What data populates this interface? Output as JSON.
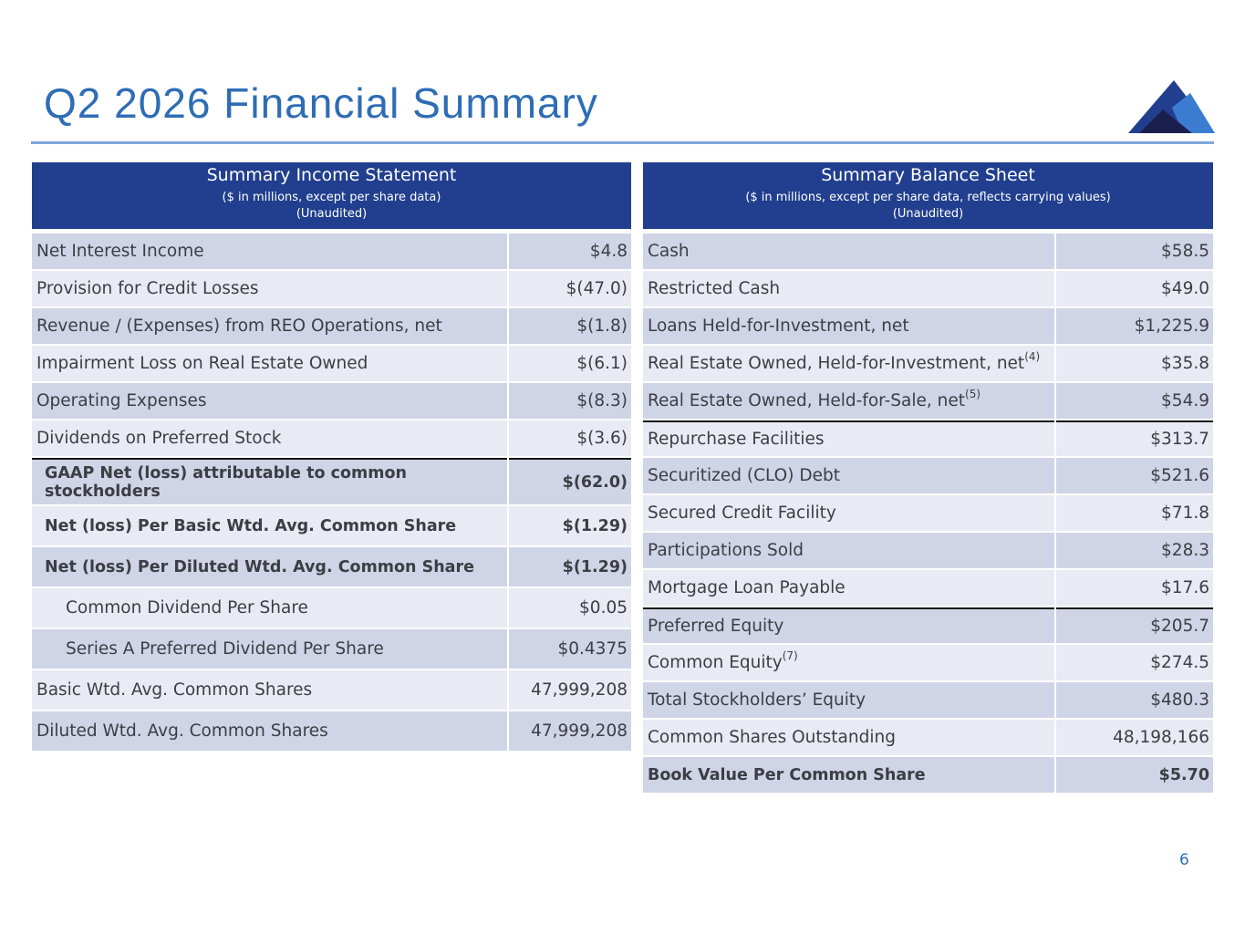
{
  "title": "Q2 2026 Financial Summary",
  "page_number": "6",
  "income_statement": {
    "title": "Summary Income Statement",
    "subtitle": "($ in millions, except per share data)",
    "note": "(Unaudited)",
    "rows": [
      {
        "label": "Net Interest Income",
        "value": "$4.8"
      },
      {
        "label": "Provision for Credit Losses",
        "value": "$(47.0)"
      },
      {
        "label": "Revenue / (Expenses) from REO Operations, net",
        "value": "$(1.8)"
      },
      {
        "label": "Impairment Loss on Real Estate Owned",
        "value": "$(6.1)"
      },
      {
        "label": "Operating Expenses",
        "value": "$(8.3)"
      },
      {
        "label": "Dividends on Preferred Stock",
        "value": "$(3.6)"
      },
      {
        "label": "GAAP Net (loss) attributable to common stockholders",
        "value": "$(62.0)"
      },
      {
        "label": "Net (loss) Per Basic Wtd. Avg. Common Share",
        "value": "$(1.29)"
      },
      {
        "label": "Net (loss) Per Diluted Wtd. Avg. Common Share",
        "value": "$(1.29)"
      },
      {
        "label": "Common Dividend Per Share",
        "value": "$0.05"
      },
      {
        "label": "Series A Preferred Dividend Per Share",
        "value": "$0.4375"
      },
      {
        "label": "Basic Wtd. Avg. Common Shares",
        "value": "47,999,208"
      },
      {
        "label": "Diluted Wtd. Avg. Common Shares",
        "value": "47,999,208"
      }
    ]
  },
  "balance_sheet": {
    "title": "Summary Balance Sheet",
    "subtitle": "($ in millions, except per share data, reflects carrying values)",
    "note": "(Unaudited)",
    "rows": [
      {
        "label": "Cash",
        "value": "$58.5"
      },
      {
        "label": "Restricted Cash",
        "value": "$49.0"
      },
      {
        "label": "Loans Held-for-Investment, net",
        "value": "$1,225.9"
      },
      {
        "label": "Real Estate Owned, Held-for-Investment, net",
        "footnote": "(4)",
        "value": "$35.8"
      },
      {
        "label": "Real Estate Owned, Held-for-Sale, net",
        "footnote": "(5)",
        "value": "$54.9"
      },
      {
        "label": "Repurchase Facilities",
        "value": "$313.7"
      },
      {
        "label": "Securitized (CLO) Debt",
        "value": "$521.6"
      },
      {
        "label": "Secured Credit Facility",
        "value": "$71.8"
      },
      {
        "label": "Participations Sold",
        "value": "$28.3"
      },
      {
        "label": "Mortgage Loan Payable",
        "value": "$17.6"
      },
      {
        "label": "Preferred Equity",
        "value": "$205.7"
      },
      {
        "label": "Common Equity",
        "footnote": "(7)",
        "value": "$274.5"
      },
      {
        "label": "Total Stockholders’ Equity",
        "value": "$480.3"
      },
      {
        "label": "Common Shares Outstanding",
        "value": "48,198,166"
      },
      {
        "label": "Book Value Per Common Share",
        "value": "$5.70"
      }
    ]
  }
}
